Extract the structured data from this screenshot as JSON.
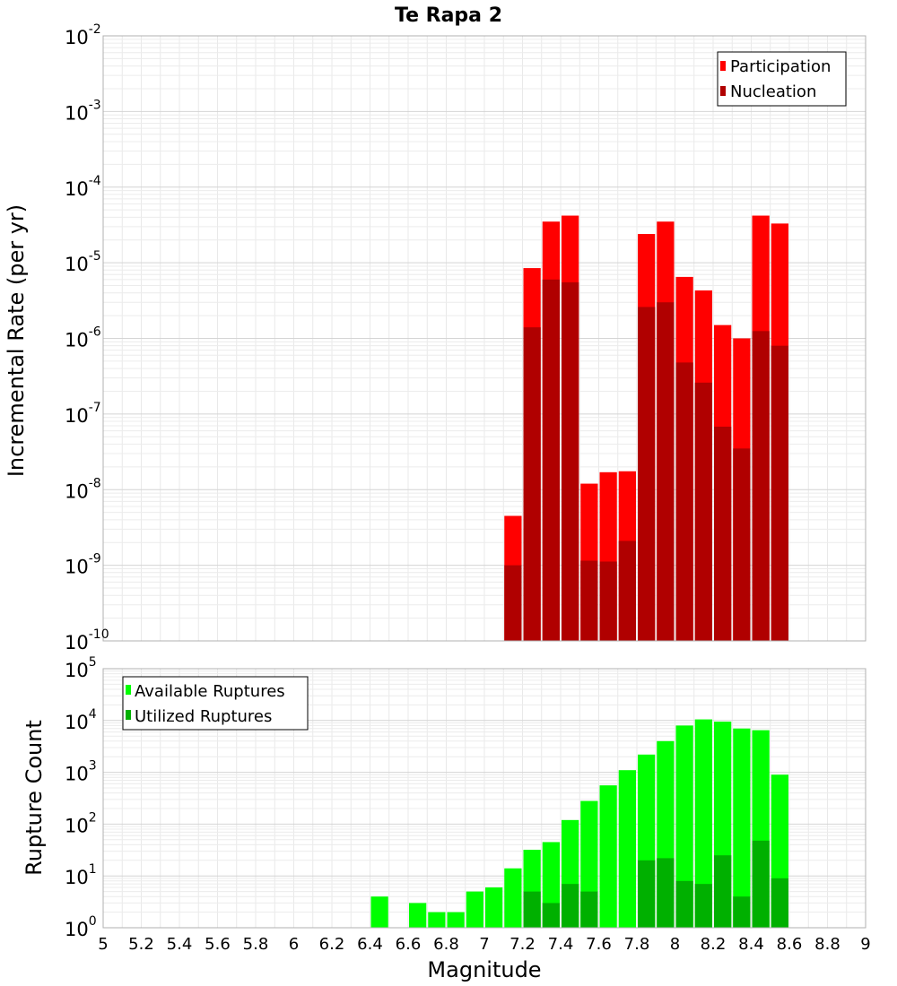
{
  "chart_data": [
    {
      "type": "bar",
      "title": "Te Rapa 2",
      "ylabel": "Incremental Rate (per yr)",
      "xlabel": "",
      "yscale": "log",
      "ylim": [
        1e-10,
        0.01
      ],
      "y_ticks": [
        {
          "base": "10",
          "exp": "-2"
        },
        {
          "base": "10",
          "exp": "-3"
        },
        {
          "base": "10",
          "exp": "-4"
        },
        {
          "base": "10",
          "exp": "-5"
        },
        {
          "base": "10",
          "exp": "-6"
        },
        {
          "base": "10",
          "exp": "-7"
        },
        {
          "base": "10",
          "exp": "-8"
        },
        {
          "base": "10",
          "exp": "-9"
        },
        {
          "base": "10",
          "exp": "-10"
        }
      ],
      "xlim": [
        5,
        9
      ],
      "grid": true,
      "legend_position": "top-right",
      "x": [
        7.15,
        7.25,
        7.35,
        7.45,
        7.55,
        7.65,
        7.75,
        7.85,
        7.95,
        8.05,
        8.15,
        8.25,
        8.35,
        8.45,
        8.55
      ],
      "series": [
        {
          "name": "Participation",
          "color": "#ff0000",
          "values": [
            4.5e-09,
            8.5e-06,
            3.5e-05,
            4.2e-05,
            1.2e-08,
            1.7e-08,
            1.75e-08,
            2.4e-05,
            3.5e-05,
            6.5e-06,
            4.3e-06,
            1.5e-06,
            1e-06,
            4.2e-05,
            3.3e-05
          ]
        },
        {
          "name": "Nucleation",
          "color": "#b00000",
          "values": [
            1e-09,
            1.4e-06,
            6e-06,
            5.5e-06,
            1.15e-09,
            1.12e-09,
            2.1e-09,
            2.6e-06,
            3e-06,
            4.8e-07,
            2.6e-07,
            6.8e-08,
            3.5e-08,
            1.25e-06,
            8e-07
          ]
        }
      ]
    },
    {
      "type": "bar",
      "title": "",
      "ylabel": "Rupture Count",
      "xlabel": "Magnitude",
      "yscale": "log",
      "ylim": [
        1,
        100000
      ],
      "y_ticks": [
        {
          "base": "10",
          "exp": "5"
        },
        {
          "base": "10",
          "exp": "4"
        },
        {
          "base": "10",
          "exp": "3"
        },
        {
          "base": "10",
          "exp": "2"
        },
        {
          "base": "10",
          "exp": "1"
        },
        {
          "base": "10",
          "exp": "0"
        }
      ],
      "xlim": [
        5,
        9
      ],
      "x_tick_labels": [
        "5",
        "5.2",
        "5.4",
        "5.6",
        "5.8",
        "6",
        "6.2",
        "6.4",
        "6.6",
        "6.8",
        "7",
        "7.2",
        "7.4",
        "7.6",
        "7.8",
        "8",
        "8.2",
        "8.4",
        "8.6",
        "8.8",
        "9"
      ],
      "grid": true,
      "legend_position": "top-left",
      "x": [
        6.45,
        6.65,
        6.75,
        6.85,
        6.95,
        7.05,
        7.15,
        7.25,
        7.35,
        7.45,
        7.55,
        7.65,
        7.75,
        7.85,
        7.95,
        8.05,
        8.15,
        8.25,
        8.35,
        8.45,
        8.55
      ],
      "series": [
        {
          "name": "Available Ruptures",
          "color": "#00ff00",
          "values": [
            4,
            3,
            2,
            2,
            5,
            6,
            14,
            32,
            45,
            120,
            280,
            560,
            1100,
            2200,
            4000,
            8000,
            10500,
            9500,
            7000,
            6500,
            900
          ]
        },
        {
          "name": "Utilized Ruptures",
          "color": "#00b000",
          "values": [
            0,
            0,
            0,
            0,
            0,
            1,
            1,
            5,
            3,
            7,
            5,
            1,
            1,
            20,
            22,
            8,
            7,
            25,
            4,
            48,
            9
          ]
        }
      ]
    }
  ]
}
